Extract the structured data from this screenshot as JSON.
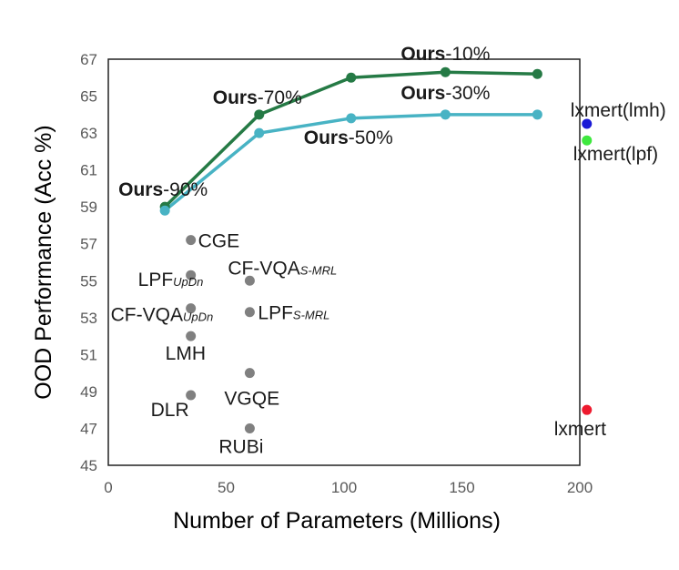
{
  "chart_data": {
    "type": "scatter",
    "title": "",
    "xlabel": "Number of Parameters (Millions)",
    "ylabel": "OOD Performance (Acc %)",
    "xlim": [
      0,
      200
    ],
    "ylim": [
      45,
      67
    ],
    "xticks": [
      0,
      50,
      100,
      150,
      200
    ],
    "yticks": [
      45,
      47,
      49,
      51,
      53,
      55,
      57,
      59,
      61,
      63,
      65,
      67
    ],
    "grid": false,
    "series": [
      {
        "color": "#257a45",
        "line": true,
        "points": [
          {
            "x": 24,
            "y": 59.0,
            "bold": "Ours",
            "label": "-90%"
          },
          {
            "x": 64,
            "y": 64.0,
            "bold": "Ours",
            "label": "-70%"
          },
          {
            "x": 103,
            "y": 66.0
          },
          {
            "x": 143,
            "y": 66.3,
            "bold": "Ours",
            "label": "-10%"
          },
          {
            "x": 182,
            "y": 66.2
          }
        ]
      },
      {
        "color": "#48b3c4",
        "line": true,
        "points": [
          {
            "x": 24,
            "y": 58.8
          },
          {
            "x": 64,
            "y": 63.0
          },
          {
            "x": 103,
            "y": 63.8,
            "bold": "Ours",
            "label": "-50%"
          },
          {
            "x": 143,
            "y": 64.0,
            "bold": "Ours",
            "label": "-30%"
          },
          {
            "x": 182,
            "y": 64.0
          }
        ]
      },
      {
        "color": "#808080",
        "line": false,
        "points": [
          {
            "x": 35,
            "y": 57.2,
            "label": "CGE"
          },
          {
            "x": 35,
            "y": 55.3,
            "label": "LPF",
            "sub": "UpDn"
          },
          {
            "x": 60,
            "y": 55.0,
            "label": "CF-VQA",
            "sub": "S-MRL"
          },
          {
            "x": 35,
            "y": 53.5,
            "label": "CF-VQA",
            "sub": "UpDn"
          },
          {
            "x": 60,
            "y": 53.3,
            "label": "LPF",
            "sub": "S-MRL"
          },
          {
            "x": 35,
            "y": 52.0,
            "label": "LMH"
          },
          {
            "x": 60,
            "y": 50.0,
            "label": "VGQE"
          },
          {
            "x": 35,
            "y": 48.8,
            "label": "DLR"
          },
          {
            "x": 60,
            "y": 47.0,
            "label": "RUBi"
          }
        ]
      },
      {
        "color": "#1a1ad6",
        "line": false,
        "points": [
          {
            "x": 203,
            "y": 63.5,
            "label": "lxmert(lmh)"
          }
        ]
      },
      {
        "color": "#3ee83e",
        "line": false,
        "points": [
          {
            "x": 203,
            "y": 62.6,
            "label": "lxmert(lpf)"
          }
        ]
      },
      {
        "color": "#ee1a2e",
        "line": false,
        "points": [
          {
            "x": 203,
            "y": 48.0,
            "label": "lxmert"
          }
        ]
      }
    ]
  }
}
